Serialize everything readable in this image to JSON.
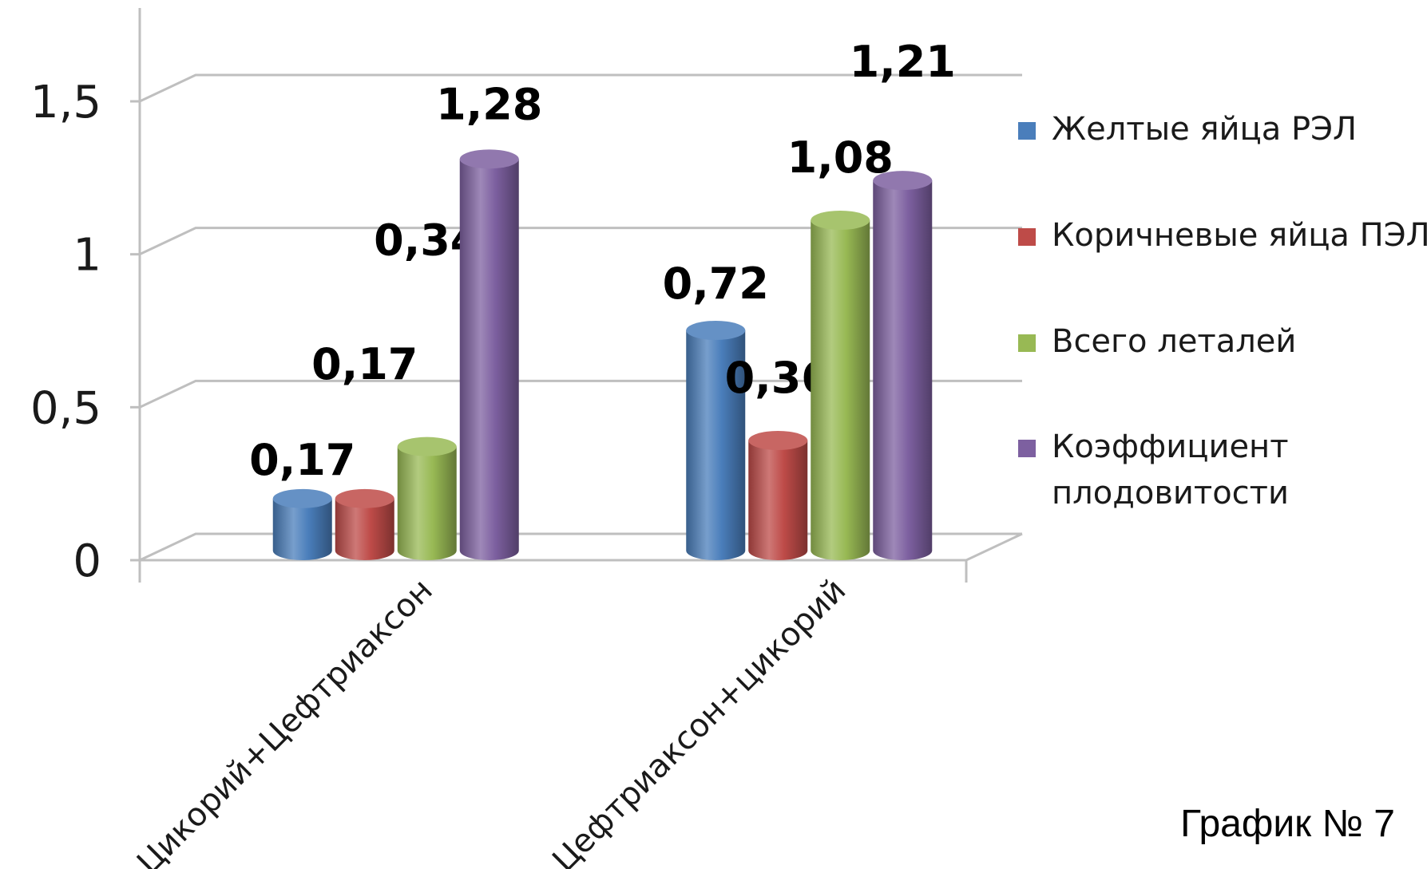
{
  "chart_data": {
    "type": "bar",
    "categories": [
      "Цикорий+Цефтриаксон",
      "Цефтриаксон+цикорий"
    ],
    "series": [
      {
        "name": "Желтые яйца РЭЛ",
        "values": [
          0.17,
          0.72
        ],
        "labels": [
          "0,17",
          "0,72"
        ],
        "color": "#4a7ebb"
      },
      {
        "name": "Коричневые яйца ПЭЛ",
        "values": [
          0.17,
          0.36
        ],
        "labels": [
          "0,17",
          "0,36"
        ],
        "color": "#be4b48"
      },
      {
        "name": "Всего леталей",
        "values": [
          0.34,
          1.08
        ],
        "labels": [
          "0,34",
          "1,08"
        ],
        "color": "#98b954"
      },
      {
        "name": "Коэффициент плодовитости",
        "values": [
          1.28,
          1.21
        ],
        "labels": [
          "1,28",
          "1,21"
        ],
        "color": "#7d60a0"
      }
    ],
    "ylim": [
      0,
      1.5
    ],
    "yticks": [
      0,
      0.5,
      1,
      1.5
    ],
    "ytick_labels": [
      "0",
      "0,5",
      "1",
      "1,5"
    ],
    "grid": true,
    "legend_position": "right",
    "style": "3d-cylinder"
  },
  "caption": "График № 7"
}
